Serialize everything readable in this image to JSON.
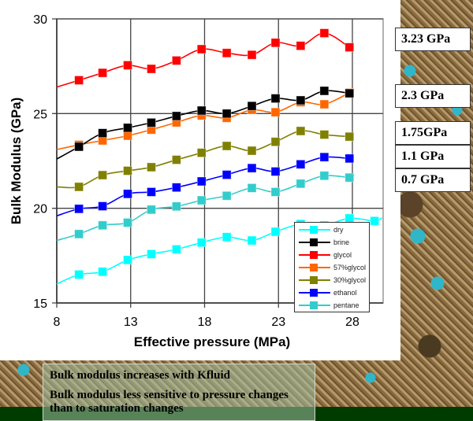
{
  "chart_data": {
    "type": "line",
    "xlabel": "Effective pressure (MPa)",
    "ylabel": "Bulk Modulus (GPa)",
    "xlim": [
      8,
      30
    ],
    "ylim": [
      15,
      30
    ],
    "xticks": [
      "8",
      "13",
      "18",
      "23",
      "28"
    ],
    "yticks": [
      "15",
      "20",
      "25",
      "30"
    ],
    "grid": true,
    "legend_position": "bottom-right",
    "x": [
      9.5,
      11.1,
      12.8,
      14.4,
      16.1,
      17.8,
      19.5,
      21.2,
      22.8,
      24.5,
      26.1,
      27.8
    ],
    "series": [
      {
        "name": "dry",
        "color": "#00ffff",
        "start": 16.0,
        "values": [
          16.5,
          16.65,
          17.27,
          17.58,
          17.83,
          18.19,
          18.48,
          18.3,
          18.76,
          19.17,
          19.1,
          19.47
        ],
        "extra": [
          [
            29.5,
            19.33
          ],
          [
            30,
            19.5
          ]
        ]
      },
      {
        "name": "brine",
        "color": "#000000",
        "start": 22.6,
        "values": [
          23.25,
          23.97,
          24.25,
          24.52,
          24.87,
          25.16,
          25.0,
          25.4,
          25.8,
          25.7,
          26.2,
          26.07
        ]
      },
      {
        "name": "glycol",
        "color": "#ff0000",
        "start": 26.4,
        "values": [
          26.76,
          27.15,
          27.55,
          27.36,
          27.8,
          28.4,
          28.2,
          28.1,
          28.74,
          28.58,
          29.25,
          28.5
        ]
      },
      {
        "name": "57%glycol",
        "color": "#ff6600",
        "start": 23.1,
        "values": [
          23.35,
          23.58,
          23.83,
          24.15,
          24.53,
          24.9,
          24.77,
          25.2,
          25.07,
          25.6,
          25.49,
          26.1
        ]
      },
      {
        "name": "30%glycol",
        "color": "#808000",
        "start": 21.13,
        "values": [
          21.13,
          21.75,
          21.98,
          22.17,
          22.56,
          22.93,
          23.29,
          23.04,
          23.51,
          24.08,
          23.89,
          23.78
        ]
      },
      {
        "name": "ethanol",
        "color": "#0000ff",
        "start": 19.6,
        "values": [
          19.97,
          20.11,
          20.76,
          20.86,
          21.1,
          21.42,
          21.77,
          22.12,
          21.94,
          22.32,
          22.7,
          22.63
        ]
      },
      {
        "name": "pentane",
        "color": "#33cccc",
        "start": 18.3,
        "values": [
          18.64,
          19.1,
          19.24,
          19.93,
          20.1,
          20.42,
          20.66,
          21.07,
          20.86,
          21.3,
          21.72,
          21.62
        ]
      }
    ]
  },
  "fluid_moduli": [
    "3.23 GPa",
    "2.3 GPa",
    "1.75GPa",
    "1.1 GPa",
    "0.7 GPa"
  ],
  "notes": [
    "Bulk modulus increases with Kfluid",
    "Bulk modulus less sensitive to pressure changes than to saturation changes"
  ]
}
